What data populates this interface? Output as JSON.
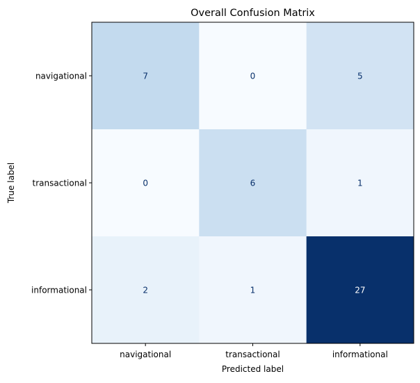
{
  "chart_data": {
    "type": "heatmap",
    "title": "Overall Confusion Matrix",
    "xlabel": "Predicted label",
    "ylabel": "True label",
    "x_categories": [
      "navigational",
      "transactional",
      "informational"
    ],
    "y_categories": [
      "navigational",
      "transactional",
      "informational"
    ],
    "values": [
      [
        7,
        0,
        5
      ],
      [
        0,
        6,
        1
      ],
      [
        2,
        1,
        27
      ]
    ],
    "colormap": "Blues",
    "vmin": 0,
    "vmax": 27,
    "colorbar": false,
    "grid": false
  }
}
